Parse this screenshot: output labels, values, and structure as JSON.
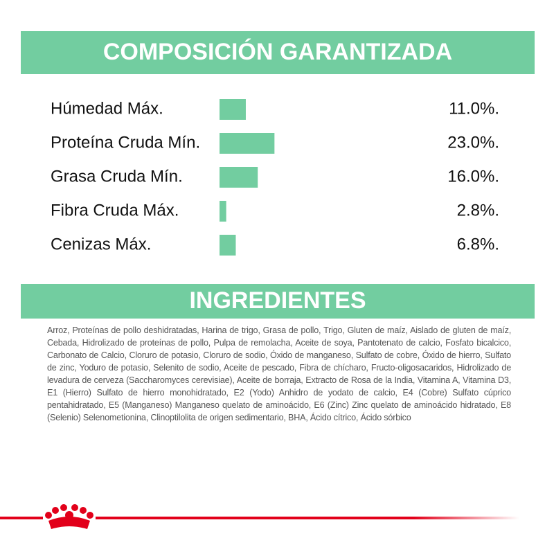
{
  "chart_data": {
    "type": "bar",
    "title": "COMPOSICIÓN GARANTIZADA",
    "categories": [
      "Húmedad Máx.",
      "Proteína Cruda Mín.",
      "Grasa Cruda Mín.",
      "Fibra Cruda Máx.",
      "Cenizas Máx."
    ],
    "values": [
      11.0,
      23.0,
      16.0,
      2.8,
      6.8
    ],
    "value_labels": [
      "11.0%.",
      "23.0%.",
      "16.0%.",
      "2.8%.",
      "6.8%."
    ],
    "color": "#72cda0"
  },
  "ingredients": {
    "title": "INGREDIENTES",
    "text": "Arroz, Proteínas de pollo deshidratadas, Harina de trigo, Grasa de pollo, Trigo, Gluten de maíz, Aislado de gluten de maíz, Cebada, Hidrolizado de proteínas de pollo, Pulpa de remolacha, Aceite de soya, Pantotenato de calcio, Fosfato bicalcico, Carbonato de Calcio, Cloruro de potasio, Cloruro de sodio, Óxido de manganeso, Sulfato de cobre, Óxido de hierro, Sulfato de zinc, Yoduro de potasio, Selenito de sodio, Aceite de pescado, Fibra de chícharo, Fructo-oligosacaridos, Hidrolizado de levadura de cerveza (Saccharomyces cerevisiae), Aceite de borraja, Extracto de Rosa de la India, Vitamina A, Vitamina D3, E1 (Hierro) Sulfato de hierro monohidratado, E2 (Yodo) Anhidro de yodato de calcio, E4 (Cobre) Sulfato cúprico pentahidratado, E5 (Manganeso) Manganeso quelato de aminoácido, E6 (Zinc) Zinc quelato de aminoácido hidratado, E8 (Selenio) Selenometionina, Clinoptilolita de origen sedimentario, BHA, Ácido cítrico, Ácido sórbico"
  }
}
